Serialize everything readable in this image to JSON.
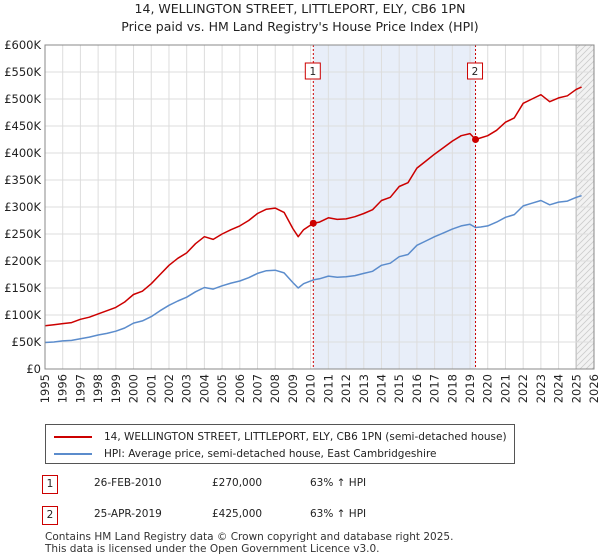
{
  "chart_data": {
    "type": "line",
    "title": "14, WELLINGTON STREET, LITTLEPORT, ELY, CB6 1PN",
    "subtitle": "Price paid vs. HM Land Registry's House Price Index (HPI)",
    "xlim": [
      1995,
      2026
    ],
    "ylim": [
      0,
      600000
    ],
    "y_ticks": [
      0,
      50000,
      100000,
      150000,
      200000,
      250000,
      300000,
      350000,
      400000,
      450000,
      500000,
      550000,
      600000
    ],
    "y_tick_labels": [
      "£0",
      "£50K",
      "£100K",
      "£150K",
      "£200K",
      "£250K",
      "£300K",
      "£350K",
      "£400K",
      "£450K",
      "£500K",
      "£550K",
      "£600K"
    ],
    "x_ticks": [
      1995,
      1996,
      1997,
      1998,
      1999,
      2000,
      2001,
      2002,
      2003,
      2004,
      2005,
      2006,
      2007,
      2008,
      2009,
      2010,
      2011,
      2012,
      2013,
      2014,
      2015,
      2016,
      2017,
      2018,
      2019,
      2020,
      2021,
      2022,
      2023,
      2024,
      2025,
      2026
    ],
    "highlight_span": [
      2010.15,
      2019.31
    ],
    "future_span": [
      2025.0,
      2026
    ],
    "series": [
      {
        "name": "14, WELLINGTON STREET, LITTLEPORT, ELY, CB6 1PN (semi-detached house)",
        "color": "#cc0000",
        "x": [
          1995.0,
          1995.5,
          1996.0,
          1996.5,
          1997.0,
          1997.5,
          1998.0,
          1998.5,
          1999.0,
          1999.5,
          2000.0,
          2000.5,
          2001.0,
          2001.5,
          2002.0,
          2002.5,
          2003.0,
          2003.5,
          2004.0,
          2004.5,
          2005.0,
          2005.5,
          2006.0,
          2006.5,
          2007.0,
          2007.5,
          2008.0,
          2008.5,
          2009.0,
          2009.3,
          2009.6,
          2010.15,
          2010.5,
          2011.0,
          2011.5,
          2012.0,
          2012.5,
          2013.0,
          2013.5,
          2014.0,
          2014.5,
          2015.0,
          2015.5,
          2016.0,
          2016.5,
          2017.0,
          2017.5,
          2018.0,
          2018.5,
          2019.0,
          2019.31,
          2019.6,
          2020.0,
          2020.5,
          2021.0,
          2021.5,
          2022.0,
          2022.5,
          2023.0,
          2023.5,
          2024.0,
          2024.5,
          2025.0,
          2025.3
        ],
        "values": [
          80000,
          82000,
          84000,
          86000,
          92000,
          96000,
          102000,
          108000,
          114000,
          124000,
          138000,
          144000,
          158000,
          175000,
          192000,
          205000,
          215000,
          232000,
          245000,
          240000,
          250000,
          258000,
          265000,
          275000,
          288000,
          296000,
          298000,
          290000,
          260000,
          245000,
          258000,
          270000,
          272000,
          280000,
          277000,
          278000,
          282000,
          288000,
          295000,
          312000,
          318000,
          338000,
          345000,
          372000,
          385000,
          398000,
          410000,
          422000,
          432000,
          436000,
          425000,
          428000,
          432000,
          442000,
          457000,
          465000,
          492000,
          500000,
          508000,
          495000,
          502000,
          506000,
          518000,
          522000
        ]
      },
      {
        "name": "HPI: Average price, semi-detached house, East Cambridgeshire",
        "color": "#5b8ccc",
        "x": [
          1995.0,
          1995.5,
          1996.0,
          1996.5,
          1997.0,
          1997.5,
          1998.0,
          1998.5,
          1999.0,
          1999.5,
          2000.0,
          2000.5,
          2001.0,
          2001.5,
          2002.0,
          2002.5,
          2003.0,
          2003.5,
          2004.0,
          2004.5,
          2005.0,
          2005.5,
          2006.0,
          2006.5,
          2007.0,
          2007.5,
          2008.0,
          2008.5,
          2009.0,
          2009.3,
          2009.6,
          2010.15,
          2010.5,
          2011.0,
          2011.5,
          2012.0,
          2012.5,
          2013.0,
          2013.5,
          2014.0,
          2014.5,
          2015.0,
          2015.5,
          2016.0,
          2016.5,
          2017.0,
          2017.5,
          2018.0,
          2018.5,
          2019.0,
          2019.31,
          2019.6,
          2020.0,
          2020.5,
          2021.0,
          2021.5,
          2022.0,
          2022.5,
          2023.0,
          2023.5,
          2024.0,
          2024.5,
          2025.0,
          2025.3
        ],
        "values": [
          49000,
          50000,
          52000,
          53000,
          56000,
          59000,
          63000,
          66000,
          70000,
          76000,
          85000,
          89000,
          97000,
          108000,
          118000,
          126000,
          133000,
          143000,
          151000,
          148000,
          154000,
          159000,
          163000,
          169000,
          177000,
          182000,
          183000,
          178000,
          160000,
          150000,
          158000,
          165000,
          167000,
          172000,
          170000,
          171000,
          173000,
          177000,
          181000,
          192000,
          196000,
          208000,
          212000,
          229000,
          237000,
          245000,
          252000,
          259000,
          265000,
          268000,
          262000,
          263000,
          265000,
          272000,
          281000,
          286000,
          302000,
          307000,
          312000,
          304000,
          309000,
          311000,
          318000,
          321000
        ]
      }
    ],
    "annotations": [
      {
        "label": "1",
        "x": 2010.15,
        "value": 270000,
        "date": "26-FEB-2010",
        "price": "£270,000",
        "hpi": "63% ↑ HPI"
      },
      {
        "label": "2",
        "x": 2019.31,
        "value": 425000,
        "date": "25-APR-2019",
        "price": "£425,000",
        "hpi": "63% ↑ HPI"
      }
    ]
  },
  "title_line1": "14, WELLINGTON STREET, LITTLEPORT, ELY, CB6 1PN",
  "title_line2": "Price paid vs. HM Land Registry's House Price Index (HPI)",
  "legend": {
    "property_label": "14, WELLINGTON STREET, LITTLEPORT, ELY, CB6 1PN (semi-detached house)",
    "hpi_label": "HPI: Average price, semi-detached house, East Cambridgeshire",
    "property_color": "#cc0000",
    "hpi_color": "#5b8ccc"
  },
  "transactions": [
    {
      "num": "1",
      "date": "26-FEB-2010",
      "price": "£270,000",
      "hpi": "63% ↑ HPI"
    },
    {
      "num": "2",
      "date": "25-APR-2019",
      "price": "£425,000",
      "hpi": "63% ↑ HPI"
    }
  ],
  "footer": {
    "line1": "Contains HM Land Registry data © Crown copyright and database right 2025.",
    "line2": "This data is licensed under the Open Government Licence v3.0."
  }
}
